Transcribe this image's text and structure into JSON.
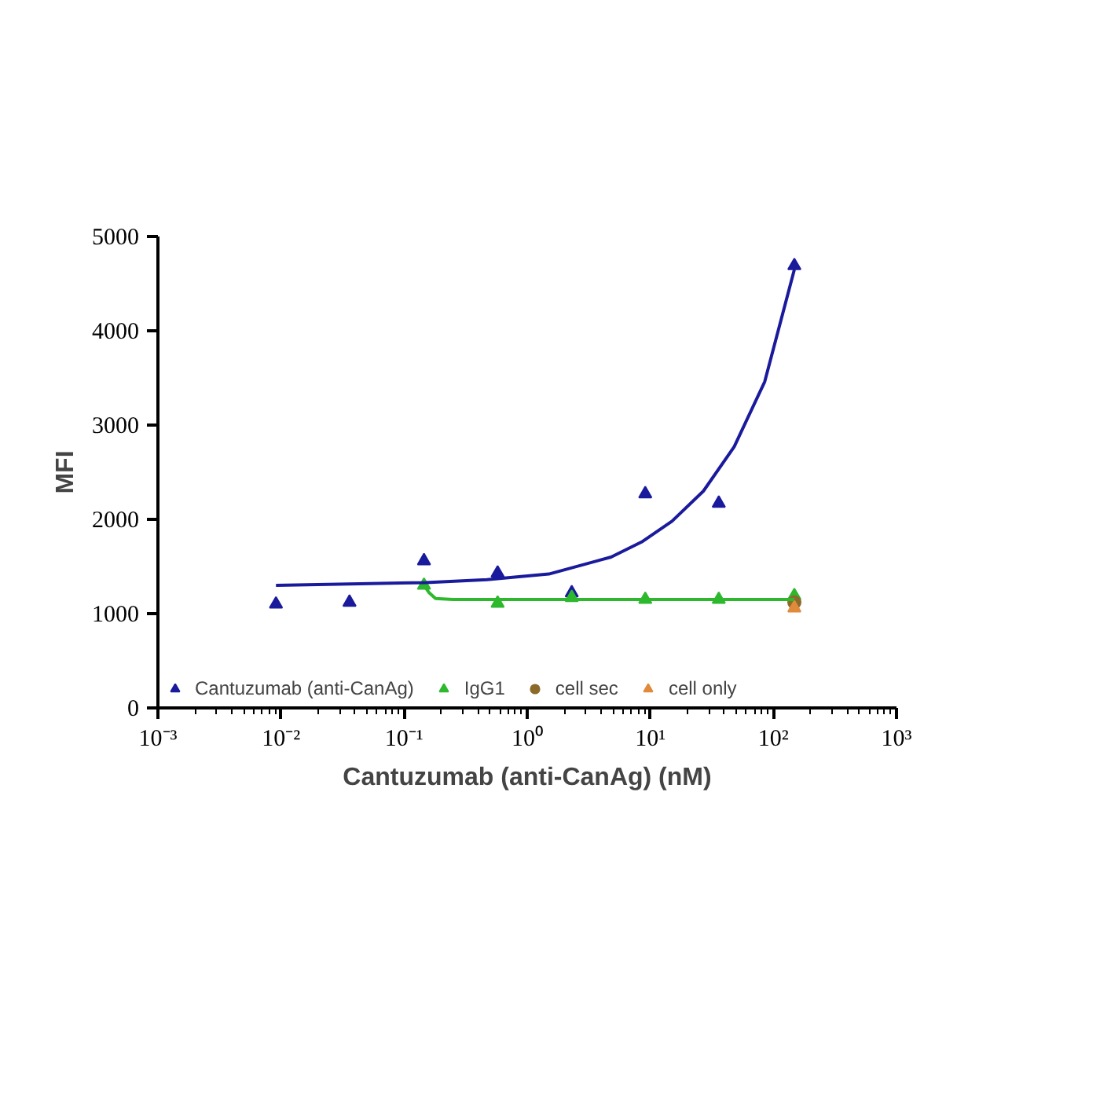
{
  "chart_data": {
    "type": "scatter",
    "xlabel": "Cantuzumab (anti-CanAg) (nM)",
    "ylabel": "MFI",
    "log": "x",
    "grid": false,
    "legend": "bottom",
    "xlim": [
      0.001,
      1000
    ],
    "ylim": [
      0,
      5000
    ],
    "xticks": [
      {
        "value": 0.001,
        "label": "10⁻³"
      },
      {
        "value": 0.01,
        "label": "10⁻²"
      },
      {
        "value": 0.1,
        "label": "10⁻¹"
      },
      {
        "value": 1,
        "label": "10⁰"
      },
      {
        "value": 10,
        "label": "10¹"
      },
      {
        "value": 100,
        "label": "10²"
      },
      {
        "value": 1000,
        "label": "10³"
      }
    ],
    "yticks": [
      0,
      1000,
      2000,
      3000,
      4000,
      5000
    ],
    "series": [
      {
        "name": "Cantuzumab (anti-CanAg)",
        "marker": "triangle",
        "color": "#1a1a9c",
        "x": [
          0.0091,
          0.036,
          0.145,
          0.575,
          2.3,
          9.1,
          36,
          148
        ],
        "values": [
          1100,
          1120,
          1560,
          1430,
          1220,
          2270,
          2170,
          4690
        ]
      },
      {
        "name": "IgG1",
        "marker": "triangle",
        "color": "#2db82d",
        "x": [
          0.145,
          0.575,
          2.3,
          9.1,
          36,
          148
        ],
        "values": [
          1300,
          1110,
          1170,
          1150,
          1150,
          1190
        ]
      },
      {
        "name": "cell sec",
        "marker": "circle",
        "color": "#8b6a2a",
        "x": [
          148
        ],
        "values": [
          1120
        ]
      },
      {
        "name": "cell only",
        "marker": "triangle",
        "color": "#e08a3c",
        "x": [
          148
        ],
        "values": [
          1060
        ]
      },
      {
        "type": "line",
        "marker": "none",
        "color": "#1a1a9c",
        "x": [
          0.0091,
          0.15,
          0.47,
          1.5,
          4.8,
          8.5,
          15,
          27,
          48,
          85,
          148
        ],
        "values": [
          1300,
          1330,
          1360,
          1420,
          1600,
          1760,
          1980,
          2300,
          2770,
          3460,
          4650
        ]
      },
      {
        "type": "line",
        "marker": "none",
        "color": "#2db82d",
        "x": [
          0.145,
          0.16,
          0.18,
          0.25,
          1,
          10,
          148
        ],
        "values": [
          1300,
          1220,
          1160,
          1150,
          1150,
          1150,
          1150
        ]
      }
    ]
  }
}
